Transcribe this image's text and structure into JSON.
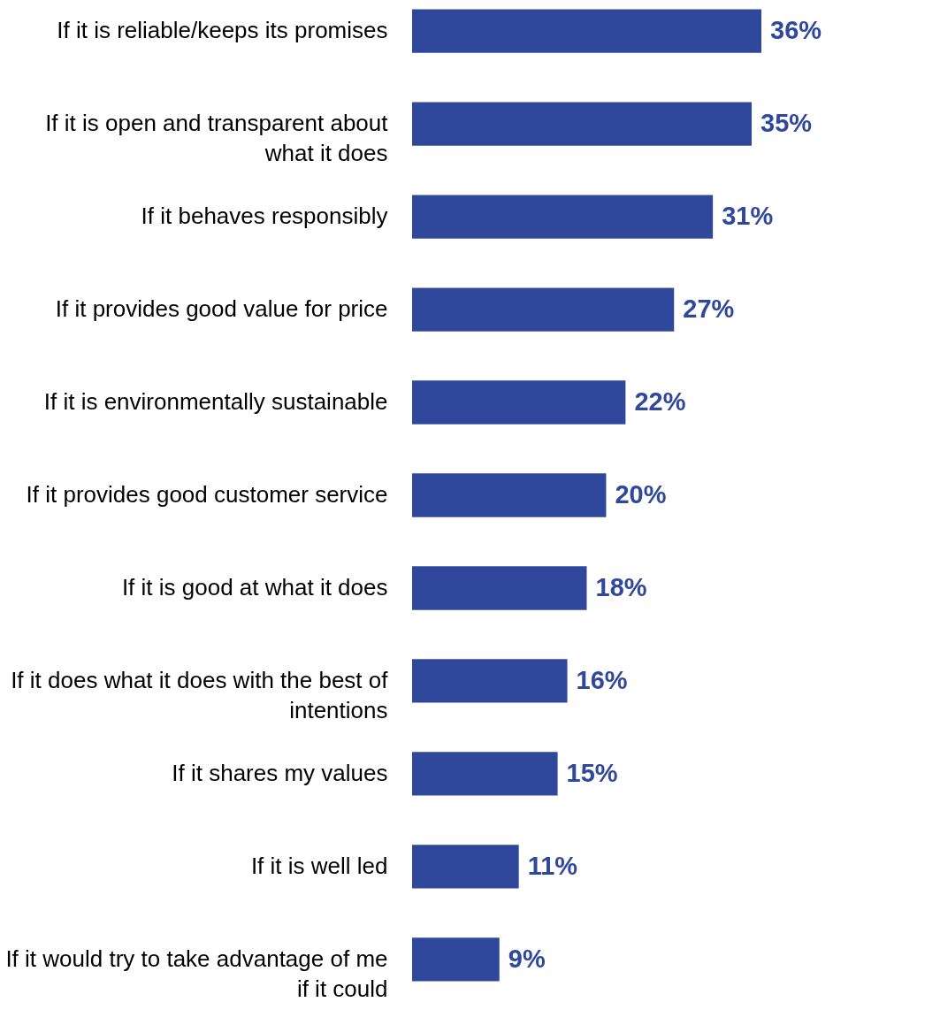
{
  "chart_data": {
    "type": "bar",
    "orientation": "horizontal",
    "color": "#30489c",
    "categories": [
      "If it is reliable/keeps its promises",
      "If it is open and transparent about what it does",
      "If it behaves responsibly",
      "If it provides good value for price",
      "If it is environmentally sustainable",
      "If it provides good customer service",
      "If it is good at what it does",
      "If it does what it does with the best of intentions",
      "If it shares my values",
      "If it is well led",
      "If it would try to take advantage of me if it could"
    ],
    "values": [
      36,
      35,
      31,
      27,
      22,
      20,
      18,
      16,
      15,
      11,
      9
    ],
    "value_labels": [
      "36%",
      "35%",
      "31%",
      "27%",
      "22%",
      "20%",
      "18%",
      "16%",
      "15%",
      "11%",
      "9%"
    ]
  }
}
